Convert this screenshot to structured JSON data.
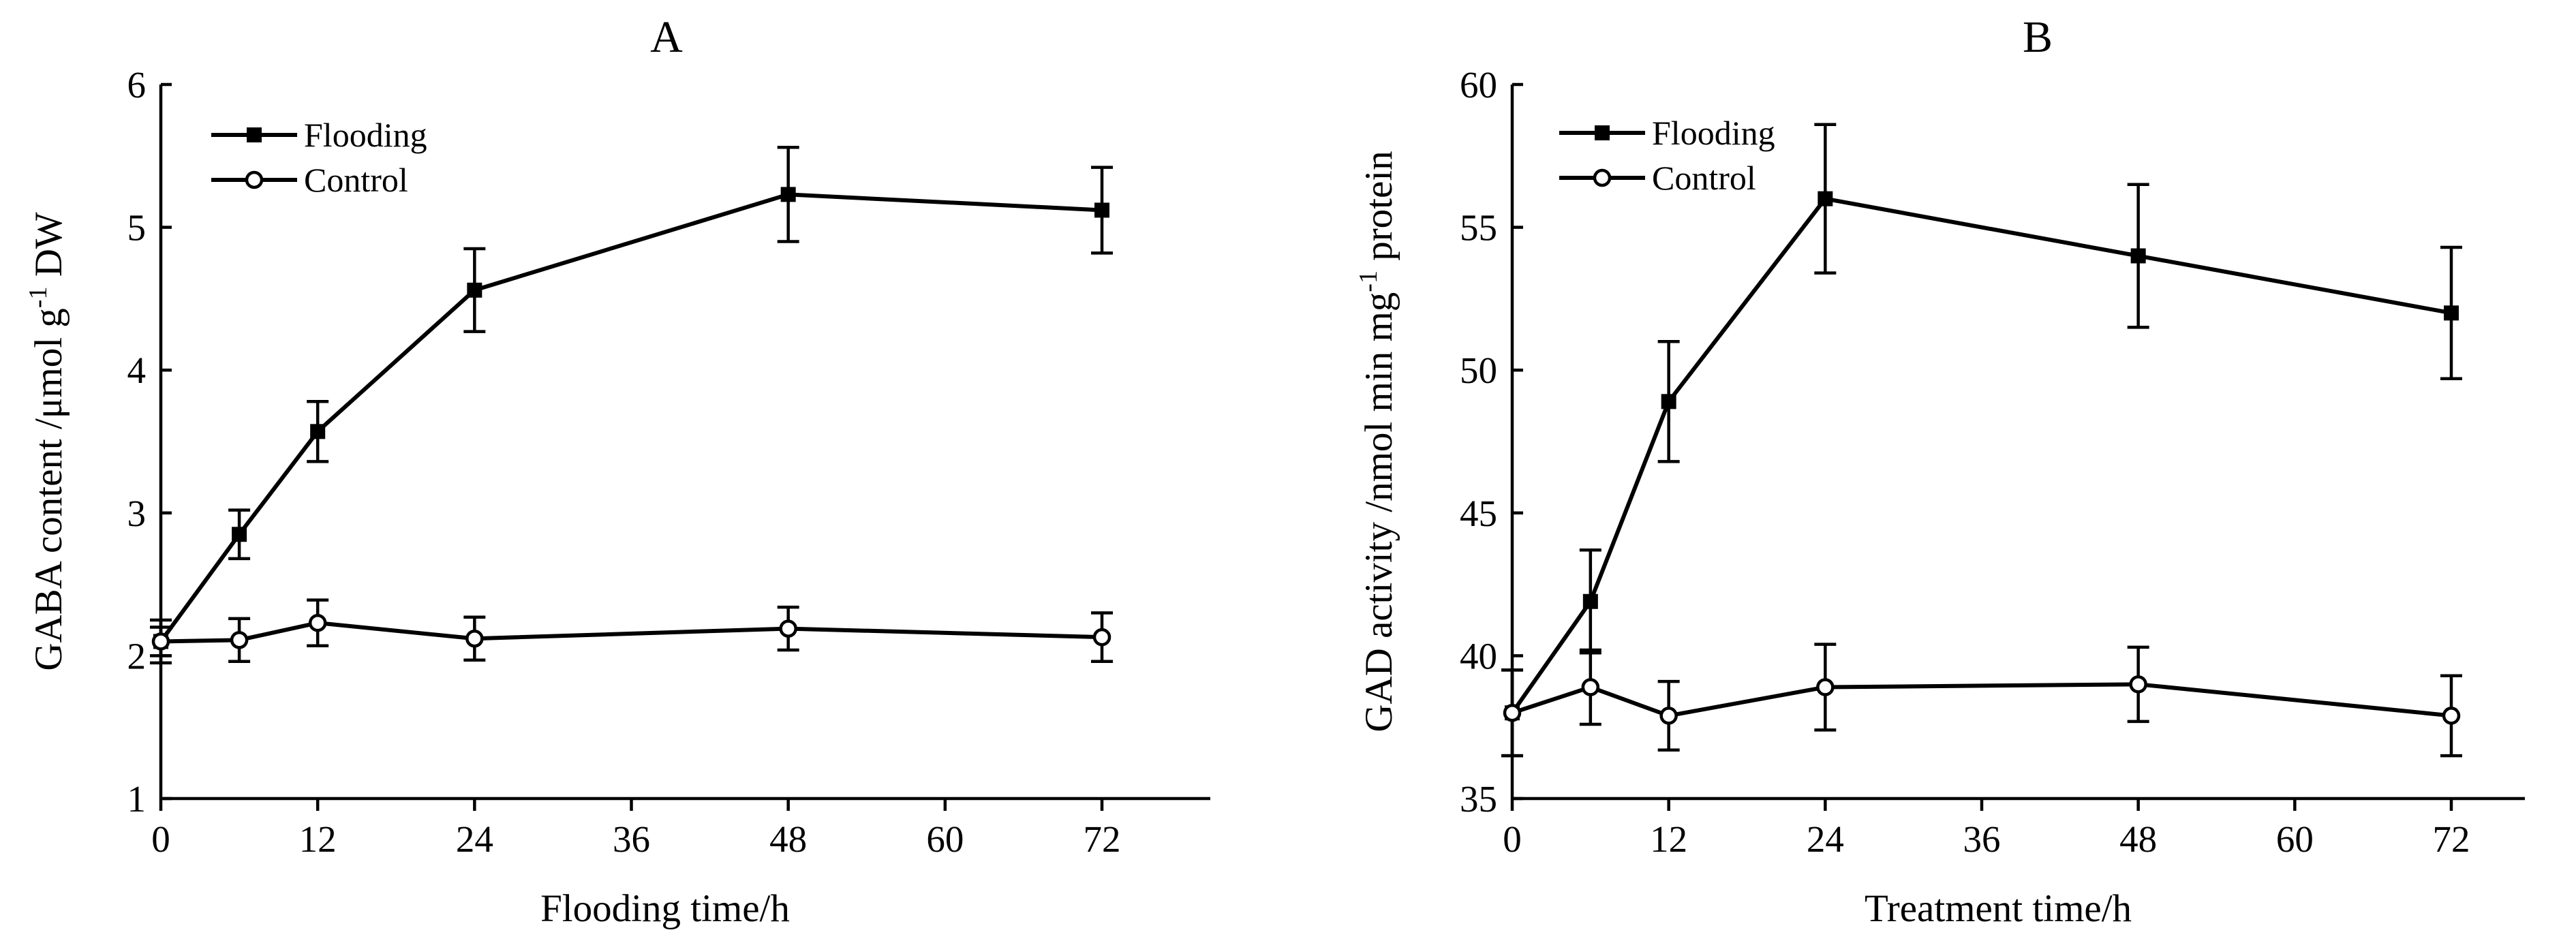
{
  "chart_data": [
    {
      "type": "line",
      "panel": "A",
      "title": "A",
      "xlabel": "Flooding time/h",
      "ylabel": "GABA content /μmol g",
      "ylabel_sup": "-1",
      "ylabel_tail": " DW",
      "xlim": [
        0,
        80
      ],
      "ylim": [
        1,
        6
      ],
      "xticks": [
        0,
        12,
        24,
        36,
        48,
        60,
        72
      ],
      "yticks": [
        1,
        2,
        3,
        4,
        5,
        6
      ],
      "legend_position": "top-left",
      "grid": false,
      "series": [
        {
          "name": "Flooding",
          "marker": "filled",
          "x": [
            0,
            6,
            12,
            24,
            48,
            72
          ],
          "y": [
            2.1,
            2.85,
            3.57,
            4.56,
            5.23,
            5.12
          ],
          "err": [
            0.15,
            0.17,
            0.21,
            0.29,
            0.33,
            0.3
          ]
        },
        {
          "name": "Control",
          "marker": "open",
          "x": [
            0,
            6,
            12,
            24,
            48,
            72
          ],
          "y": [
            2.1,
            2.11,
            2.23,
            2.12,
            2.19,
            2.13
          ],
          "err": [
            0.1,
            0.15,
            0.16,
            0.15,
            0.15,
            0.17
          ]
        }
      ]
    },
    {
      "type": "line",
      "panel": "B",
      "title": "B",
      "xlabel": "Treatment time/h",
      "ylabel": "GAD activity /nmol min mg",
      "ylabel_sup": "-1",
      "ylabel_tail": " protein",
      "xlim": [
        0,
        80
      ],
      "ylim": [
        35,
        60
      ],
      "xticks": [
        0,
        12,
        24,
        36,
        48,
        60,
        72
      ],
      "yticks": [
        35,
        40,
        45,
        50,
        55,
        60
      ],
      "legend_position": "top-left",
      "grid": false,
      "series": [
        {
          "name": "Flooding",
          "marker": "filled",
          "x": [
            0,
            6,
            12,
            24,
            48,
            72
          ],
          "y": [
            38.0,
            41.9,
            48.9,
            56.0,
            54.0,
            52.0
          ],
          "err": [
            1.5,
            1.8,
            2.1,
            2.6,
            2.5,
            2.3
          ]
        },
        {
          "name": "Control",
          "marker": "open",
          "x": [
            0,
            6,
            12,
            24,
            48,
            72
          ],
          "y": [
            38.0,
            38.9,
            37.9,
            38.9,
            39.0,
            37.9
          ],
          "err": [
            1.5,
            1.3,
            1.2,
            1.5,
            1.3,
            1.4
          ]
        }
      ]
    }
  ]
}
